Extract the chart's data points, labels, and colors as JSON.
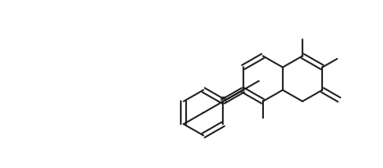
{
  "bg_color": "#ffffff",
  "line_color": "#1a1a1a",
  "line_width": 1.3,
  "figsize": [
    4.28,
    1.88
  ],
  "dpi": 100,
  "xlim": [
    0,
    428
  ],
  "ylim": [
    0,
    188
  ]
}
